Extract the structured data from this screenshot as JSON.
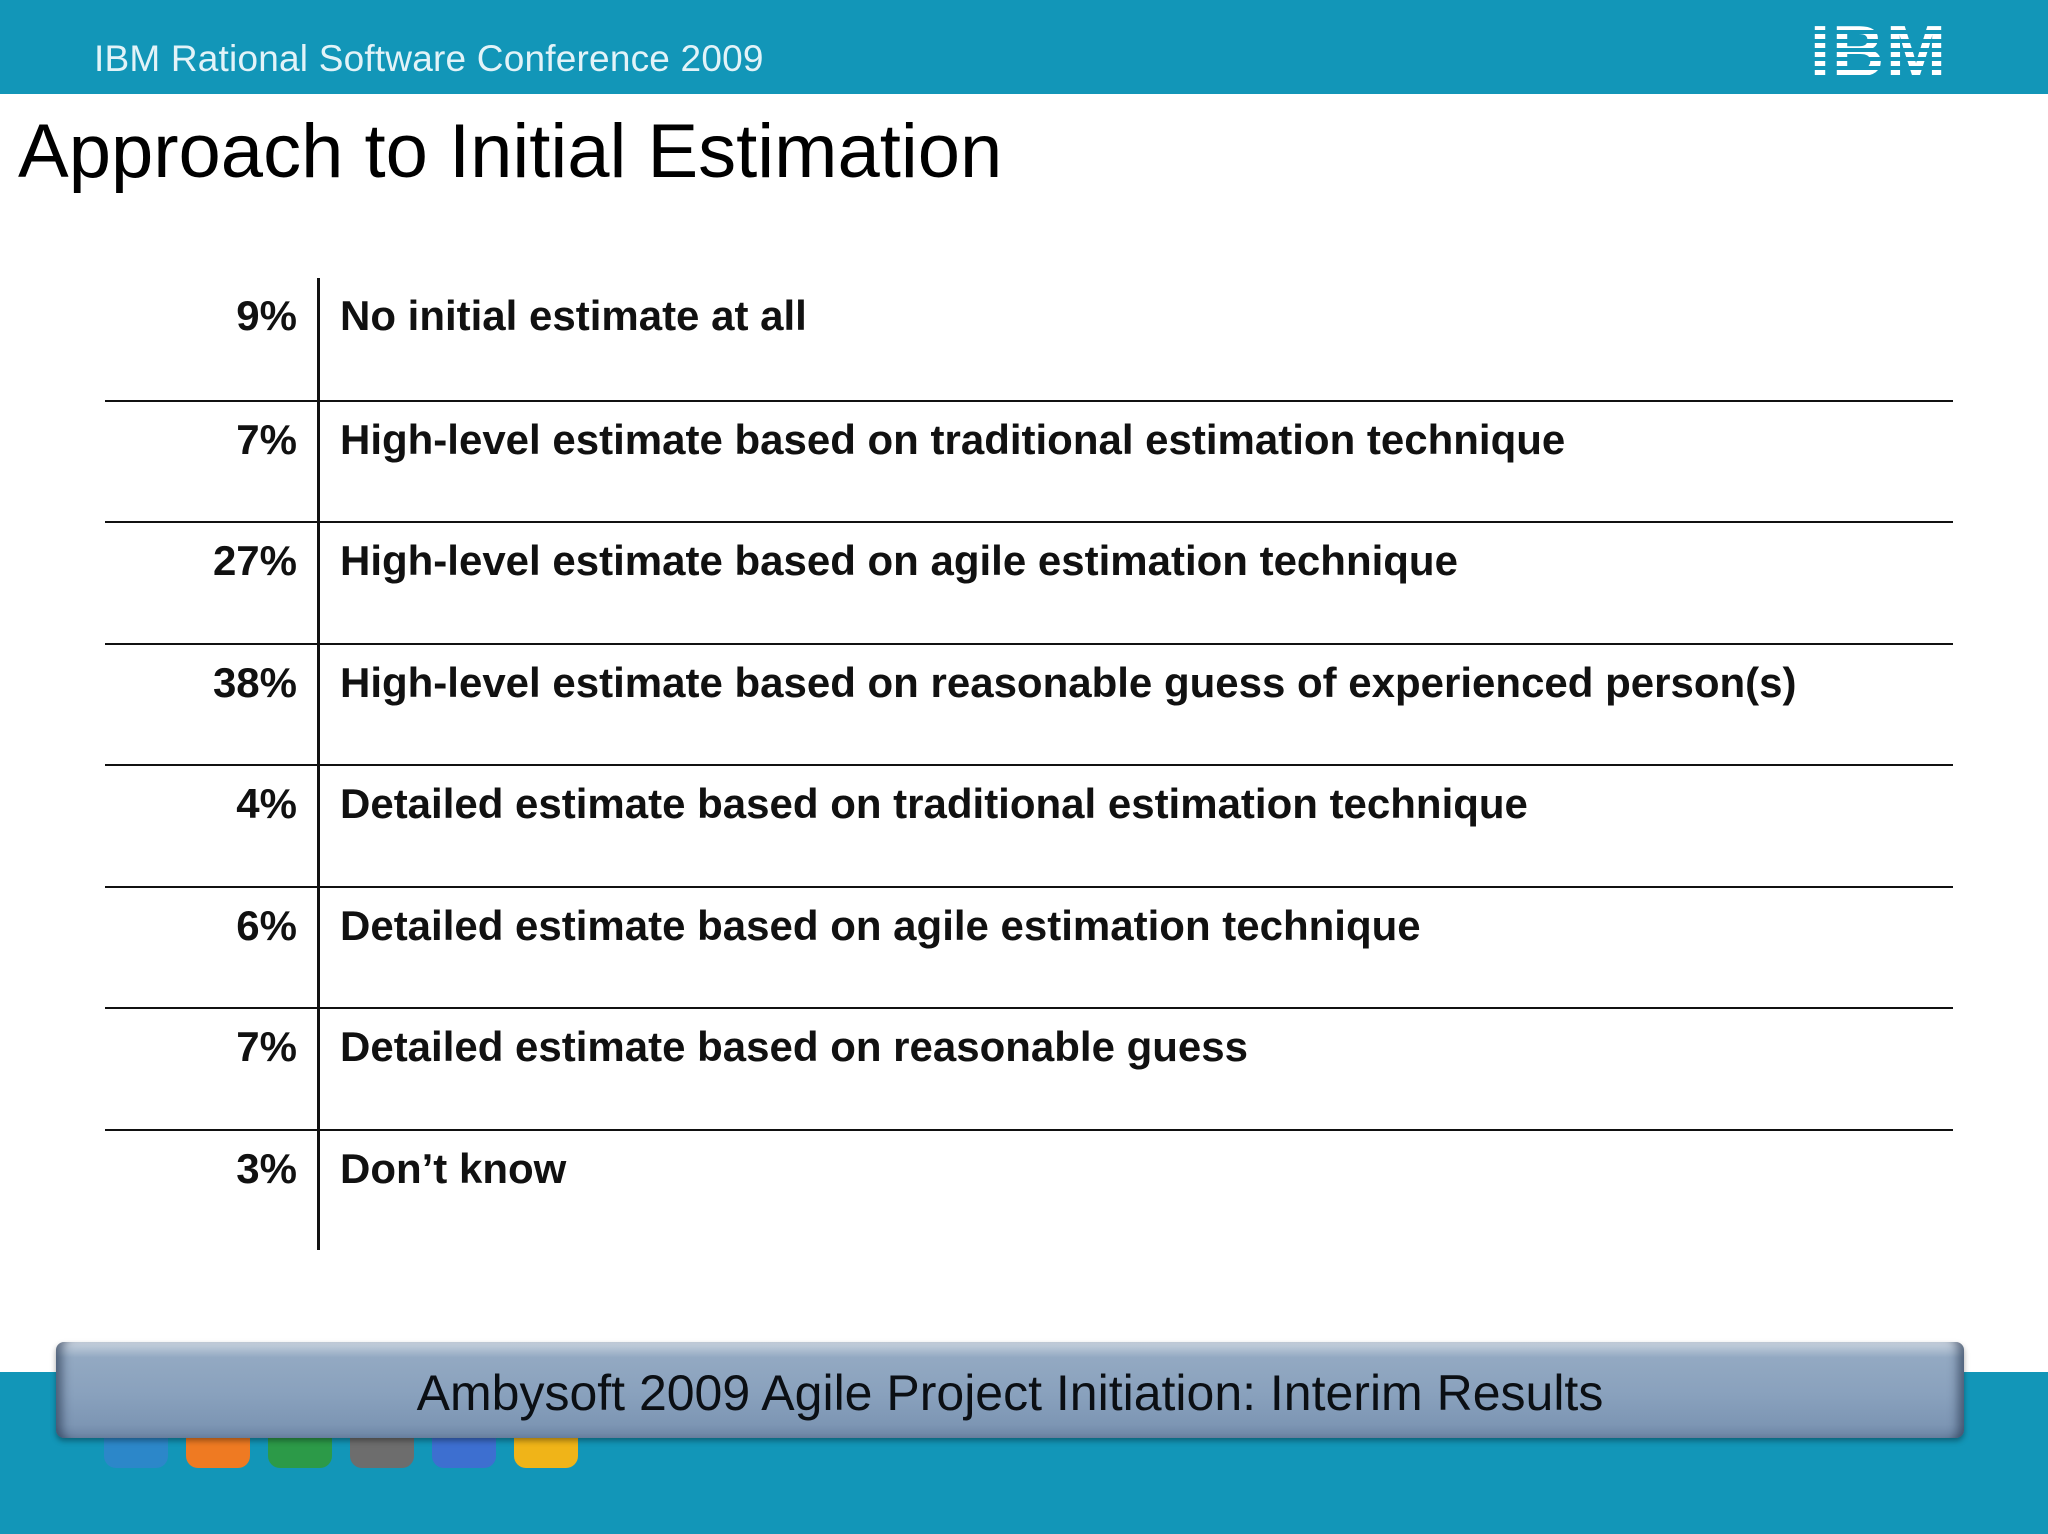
{
  "header": {
    "conference_title": "IBM Rational Software Conference 2009",
    "logo_text": "IBM",
    "logo_color": "#ffffff",
    "bar_color": "#1296b8"
  },
  "slide": {
    "title": "Approach to Initial Estimation"
  },
  "results": [
    {
      "percent": "9%",
      "label": "No initial estimate at all"
    },
    {
      "percent": "7%",
      "label": "High-level estimate based on traditional estimation technique"
    },
    {
      "percent": "27%",
      "label": "High-level estimate based on agile estimation technique"
    },
    {
      "percent": "38%",
      "label": "High-level estimate based on reasonable guess of experienced person(s)"
    },
    {
      "percent": "4%",
      "label": "Detailed estimate based on traditional estimation technique"
    },
    {
      "percent": "6%",
      "label": "Detailed estimate based on agile estimation technique"
    },
    {
      "percent": "7%",
      "label": "Detailed estimate based on reasonable guess"
    },
    {
      "percent": "3%",
      "label": "Don’t know"
    }
  ],
  "footer": {
    "banner_text": "Ambysoft 2009 Agile Project Initiation: Interim Results",
    "dock_icons": [
      {
        "name": "keyboard-icon",
        "color": "#2c87c9"
      },
      {
        "name": "presentation-icon",
        "color": "#ef7a22"
      },
      {
        "name": "book-icon",
        "color": "#2c9a48"
      },
      {
        "name": "laptop-icon",
        "color": "#6d6d6d"
      },
      {
        "name": "megaphone-icon",
        "color": "#3d6fd0"
      },
      {
        "name": "folder-icon",
        "color": "#f0b418"
      }
    ]
  }
}
